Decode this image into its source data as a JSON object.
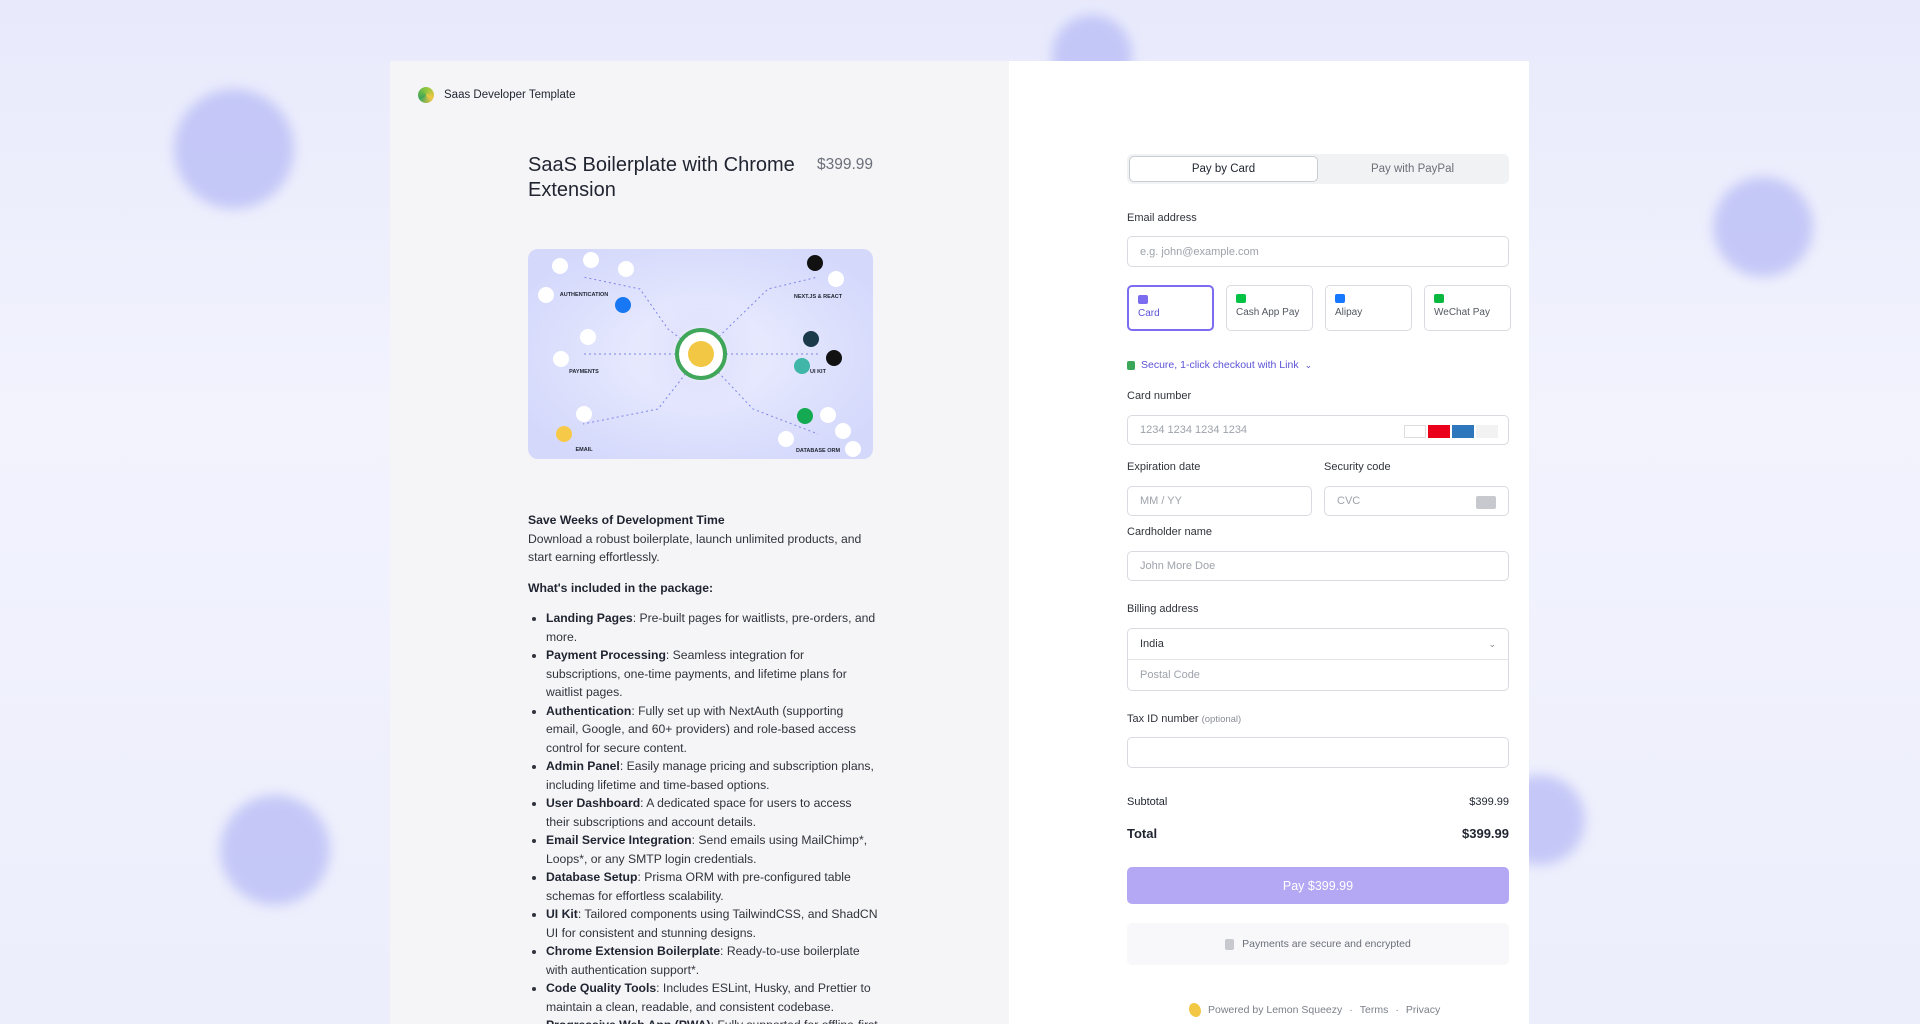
{
  "header": {
    "brand": "Saas Developer Template"
  },
  "product": {
    "title": "SaaS Boilerplate with Chrome Extension",
    "price": "$399.99",
    "image_labels": [
      "AUTHENTICATION",
      "PAYMENTS",
      "EMAIL",
      "NEXT.JS & REACT",
      "UI KIT",
      "DATABASE ORM"
    ]
  },
  "description": {
    "heading": "Save Weeks of Development Time",
    "text": "Download a robust boilerplate, launch unlimited products, and start earning effortlessly.",
    "list_heading": "What's included in the package:",
    "features": [
      {
        "name": "Landing Pages",
        "text": ": Pre-built pages for waitlists, pre-orders, and more."
      },
      {
        "name": "Payment Processing",
        "text": ": Seamless integration for subscriptions, one-time payments, and lifetime plans for waitlist pages."
      },
      {
        "name": "Authentication",
        "text": ": Fully set up with NextAuth (supporting email, Google, and 60+ providers) and role-based access control for secure content."
      },
      {
        "name": "Admin Panel",
        "text": ": Easily manage pricing and subscription plans, including lifetime and time-based options."
      },
      {
        "name": "User Dashboard",
        "text": ": A dedicated space for users to access their subscriptions and account details."
      },
      {
        "name": "Email Service Integration",
        "text": ": Send emails using MailChimp*, Loops*, or any SMTP login credentials."
      },
      {
        "name": "Database Setup",
        "text": ": Prisma ORM with pre-configured table schemas for effortless scalability."
      },
      {
        "name": "UI Kit",
        "text": ": Tailored components using TailwindCSS, and ShadCN UI for consistent and stunning designs."
      },
      {
        "name": "Chrome Extension Boilerplate",
        "text": ": Ready-to-use boilerplate with authentication support*."
      },
      {
        "name": "Code Quality Tools",
        "text": ": Includes ESLint, Husky, and Prettier to maintain a clean, readable, and consistent codebase."
      },
      {
        "name": "Progressive Web App (PWA)",
        "text": ": Fully supported for offline-first functionality"
      }
    ]
  },
  "checkout": {
    "tabs": [
      "Pay by Card",
      "Pay with PayPal"
    ],
    "email_label": "Email address",
    "email_placeholder": "e.g. john@example.com",
    "methods": [
      "Card",
      "Cash App Pay",
      "Alipay",
      "WeChat Pay"
    ],
    "link_text": "Secure, 1-click checkout with Link",
    "card_label": "Card number",
    "card_placeholder": "1234 1234 1234 1234",
    "expiry_label": "Expiration date",
    "expiry_placeholder": "MM / YY",
    "cvc_label": "Security code",
    "cvc_placeholder": "CVC",
    "name_label": "Cardholder name",
    "name_placeholder": "John More Doe",
    "billing_label": "Billing address",
    "country": "India",
    "postal_placeholder": "Postal Code",
    "tax_label": "Tax ID number",
    "tax_optional": "(optional)",
    "subtotal_label": "Subtotal",
    "subtotal": "$399.99",
    "total_label": "Total",
    "total": "$399.99",
    "pay_button": "Pay $399.99",
    "secure_note": "Payments are secure and encrypted",
    "footer": {
      "powered": "Powered by Lemon Squeezy",
      "terms": "Terms",
      "privacy": "Privacy"
    }
  }
}
